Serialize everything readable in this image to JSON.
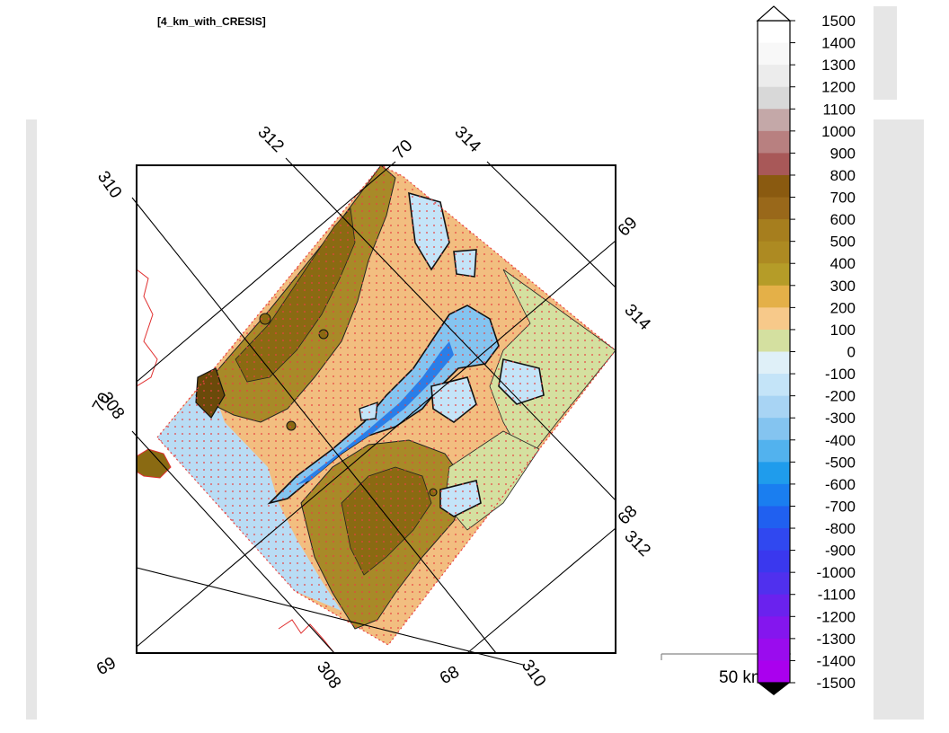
{
  "dataset_label": "[4_km_with_CRESIS]",
  "lat_labels": [
    "70",
    "69",
    "68"
  ],
  "lon_labels": [
    "310",
    "312",
    "314",
    "308"
  ],
  "graticule_labels": [
    {
      "text": "310",
      "anchor": "top-left"
    },
    {
      "text": "312",
      "anchor": "top"
    },
    {
      "text": "70",
      "anchor": "top"
    },
    {
      "text": "314",
      "anchor": "top-right"
    },
    {
      "text": "69",
      "anchor": "right"
    },
    {
      "text": "314",
      "anchor": "right"
    },
    {
      "text": "70",
      "anchor": "left"
    },
    {
      "text": "308",
      "anchor": "left"
    },
    {
      "text": "68",
      "anchor": "right"
    },
    {
      "text": "312",
      "anchor": "right"
    },
    {
      "text": "69",
      "anchor": "bottom-left"
    },
    {
      "text": "308",
      "anchor": "bottom"
    },
    {
      "text": "68",
      "anchor": "bottom"
    },
    {
      "text": "310",
      "anchor": "bottom"
    }
  ],
  "scale_bar_label": "50 km",
  "colorbar": {
    "levels": [
      1500,
      1400,
      1300,
      1200,
      1100,
      1000,
      900,
      800,
      700,
      600,
      500,
      400,
      300,
      200,
      100,
      0,
      -100,
      -200,
      -300,
      -400,
      -500,
      -600,
      -700,
      -800,
      -900,
      -1000,
      -1100,
      -1200,
      -1300,
      -1400,
      -1500
    ],
    "colors": [
      "#ffffff",
      "#f8f8f8",
      "#ececec",
      "#d8d8d8",
      "#c4a8a8",
      "#b88080",
      "#a85858",
      "#8a5a10",
      "#99681a",
      "#a67e1e",
      "#ad8a22",
      "#b59c28",
      "#e4b048",
      "#f7c98a",
      "#d4e0a0",
      "#dff0f8",
      "#c4e4f8",
      "#a8d4f4",
      "#84c4f0",
      "#52b2ee",
      "#1f9cec",
      "#1a7ef0",
      "#2060f0",
      "#3048f0",
      "#3a38ee",
      "#5030ee",
      "#6a22ee",
      "#8416ee",
      "#9a0cee",
      "#aa00ee"
    ]
  }
}
